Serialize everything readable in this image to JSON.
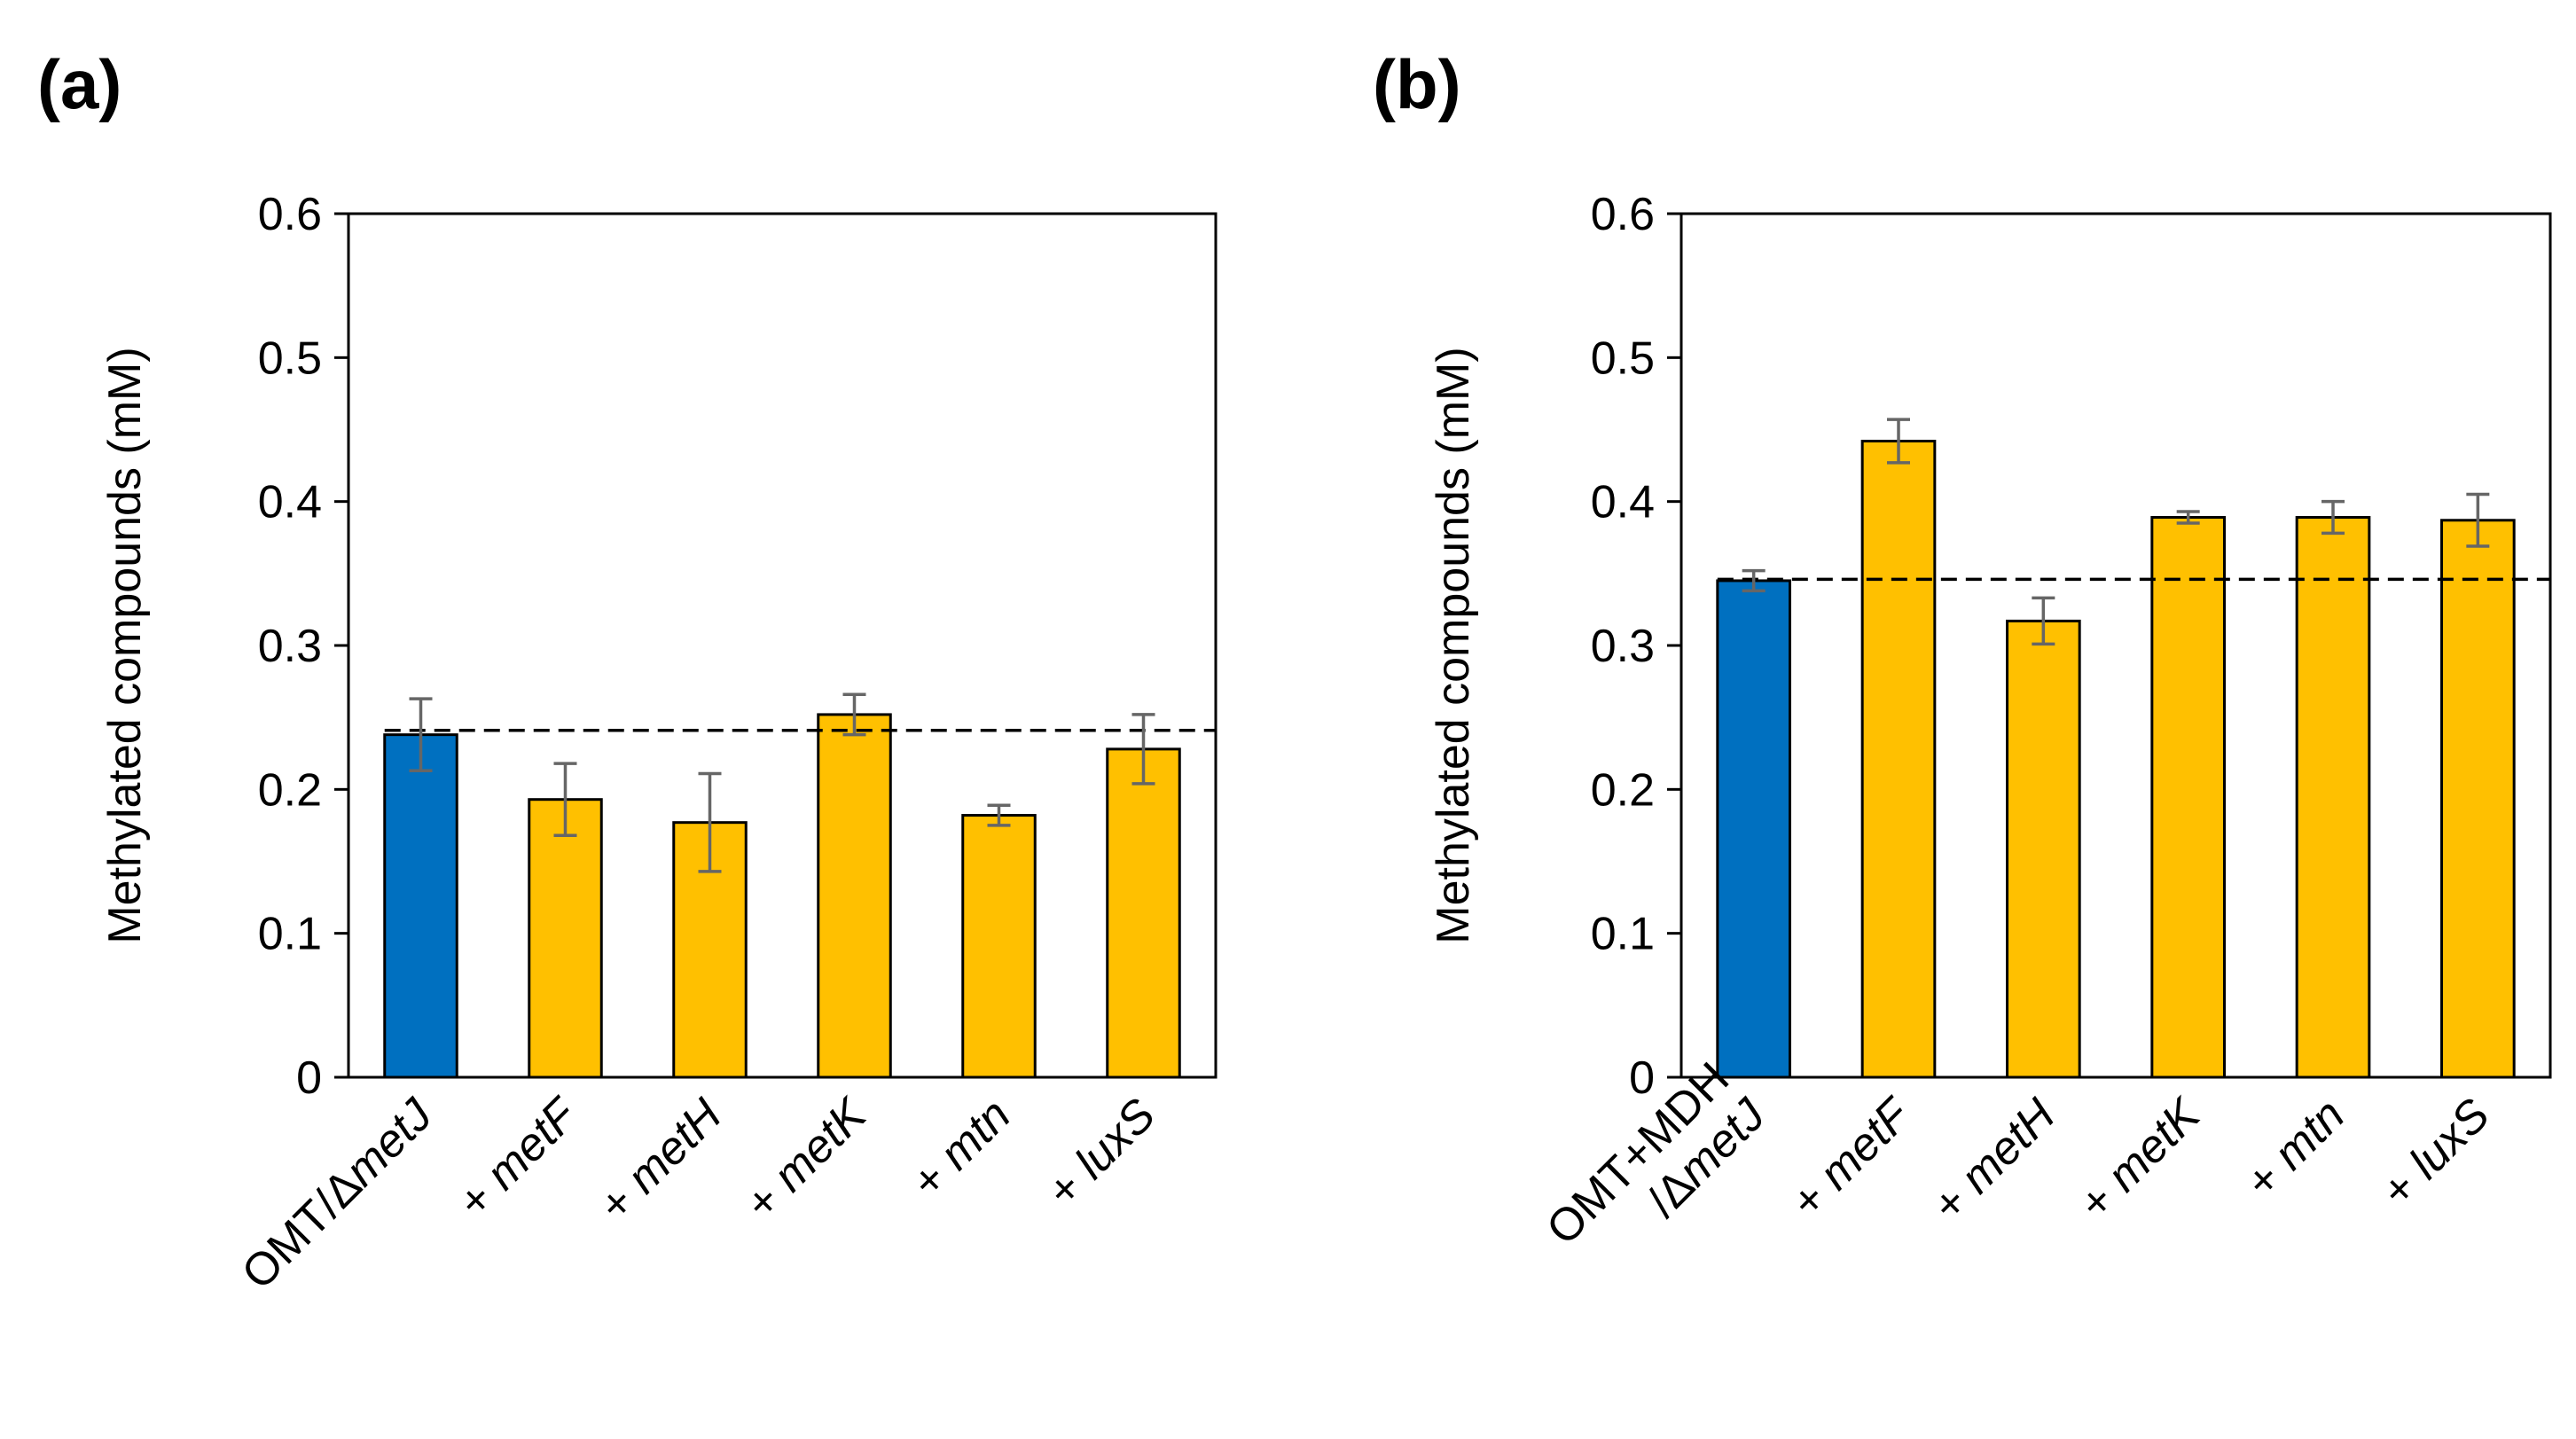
{
  "colors": {
    "control": "#0070C0",
    "variant": "#FFC000",
    "errorbar": "#666666",
    "axis": "#000000"
  },
  "chart_data": [
    {
      "type": "bar",
      "panel_label": "(a)",
      "ylabel": "Methylated compounds (mM)",
      "ylim": [
        0,
        0.6
      ],
      "yticks": [
        "0",
        "0.1",
        "0.2",
        "0.3",
        "0.4",
        "0.5",
        "0.6"
      ],
      "ytick_values": [
        0,
        0.1,
        0.2,
        0.3,
        0.4,
        0.5,
        0.6
      ],
      "categories": [
        [
          [
            "OMT/Δ",
            false
          ],
          [
            "metJ",
            true
          ]
        ],
        [
          [
            "+ ",
            false
          ],
          [
            "metF",
            true
          ]
        ],
        [
          [
            "+ ",
            false
          ],
          [
            "metH",
            true
          ]
        ],
        [
          [
            "+ ",
            false
          ],
          [
            "metK",
            true
          ]
        ],
        [
          [
            "+ ",
            false
          ],
          [
            "mtn",
            true
          ]
        ],
        [
          [
            "+ ",
            false
          ],
          [
            "luxS",
            true
          ]
        ]
      ],
      "values": [
        0.238,
        0.193,
        0.177,
        0.252,
        0.182,
        0.228
      ],
      "errors": [
        0.025,
        0.025,
        0.034,
        0.014,
        0.007,
        0.024
      ],
      "bar_colors": [
        "control",
        "variant",
        "variant",
        "variant",
        "variant",
        "variant"
      ],
      "reference_line": 0.241
    },
    {
      "type": "bar",
      "panel_label": "(b)",
      "ylabel": "Methylated compounds (mM)",
      "ylim": [
        0,
        0.6
      ],
      "yticks": [
        "0",
        "0.1",
        "0.2",
        "0.3",
        "0.4",
        "0.5",
        "0.6"
      ],
      "ytick_values": [
        0,
        0.1,
        0.2,
        0.3,
        0.4,
        0.5,
        0.6
      ],
      "categories": [
        [
          [
            "OMT+MDH",
            false
          ],
          [
            "/Δ",
            false
          ],
          [
            "metJ",
            true
          ]
        ],
        [
          [
            "+ ",
            false
          ],
          [
            "metF",
            true
          ]
        ],
        [
          [
            "+ ",
            false
          ],
          [
            "metH",
            true
          ]
        ],
        [
          [
            "+ ",
            false
          ],
          [
            "metK",
            true
          ]
        ],
        [
          [
            "+ ",
            false
          ],
          [
            "mtn",
            true
          ]
        ],
        [
          [
            "+ ",
            false
          ],
          [
            "luxS",
            true
          ]
        ]
      ],
      "category_lines": [
        [
          [
            "OMT+MDH",
            false
          ]
        ],
        [
          [
            "/Δ",
            false
          ],
          [
            "metJ",
            true
          ]
        ]
      ],
      "values": [
        0.345,
        0.442,
        0.317,
        0.389,
        0.389,
        0.387
      ],
      "errors": [
        0.007,
        0.015,
        0.016,
        0.004,
        0.011,
        0.018
      ],
      "bar_colors": [
        "control",
        "variant",
        "variant",
        "variant",
        "variant",
        "variant"
      ],
      "reference_line": 0.346
    }
  ]
}
